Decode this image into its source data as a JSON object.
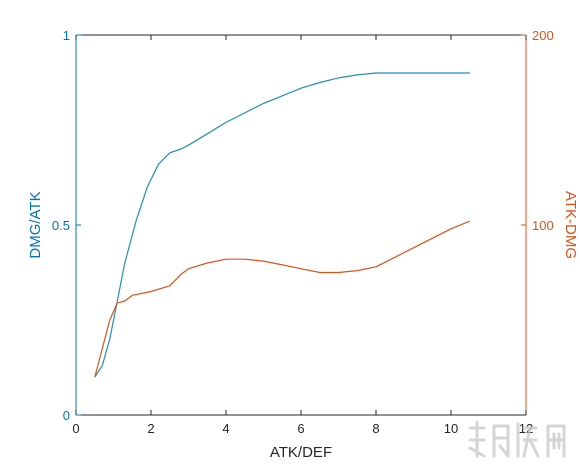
{
  "chart_data": {
    "type": "line",
    "xlabel": "ATK/DEF",
    "ylabel_left": "DMG/ATK",
    "ylabel_right": "ATK-DMG",
    "xlim": [
      0,
      12
    ],
    "ylim_left": [
      0,
      1
    ],
    "ylim_right": [
      0,
      200
    ],
    "x_ticks": [
      "0",
      "2",
      "4",
      "6",
      "8",
      "10",
      "12"
    ],
    "y_left_ticks": [
      "0",
      "0.5",
      "1"
    ],
    "y_right_ticks": [
      "100",
      "200"
    ],
    "grid": false,
    "colors": {
      "left_axis": "#0072BD",
      "right_axis": "#D95319",
      "left_series": "#1F90B8",
      "right_series": "#D95319",
      "axis_box": "#262626"
    },
    "series": [
      {
        "axis": "left",
        "x": [
          0.5,
          0.7,
          0.9,
          1.1,
          1.3,
          1.6,
          1.9,
          2.2,
          2.5,
          2.8,
          3.0,
          3.5,
          4.0,
          4.5,
          5.0,
          5.5,
          6.0,
          6.5,
          7.0,
          7.5,
          8.0,
          8.5,
          9.0,
          9.5,
          10.0,
          10.5
        ],
        "y": [
          0.1,
          0.13,
          0.2,
          0.3,
          0.4,
          0.51,
          0.6,
          0.66,
          0.69,
          0.7,
          0.71,
          0.74,
          0.77,
          0.795,
          0.82,
          0.84,
          0.86,
          0.875,
          0.887,
          0.895,
          0.9,
          0.9,
          0.9,
          0.9,
          0.9,
          0.9
        ]
      },
      {
        "axis": "right",
        "x": [
          0.5,
          0.7,
          0.9,
          1.1,
          1.3,
          1.5,
          2.0,
          2.5,
          2.8,
          3.0,
          3.5,
          4.0,
          4.5,
          5.0,
          5.5,
          6.0,
          6.5,
          7.0,
          7.5,
          8.0,
          8.5,
          9.0,
          9.5,
          10.0,
          10.5
        ],
        "y": [
          20,
          35,
          50,
          59,
          60,
          63,
          65,
          68,
          74,
          77,
          80,
          82,
          82,
          81,
          79,
          77,
          75,
          75,
          76,
          78,
          83,
          88,
          93,
          98,
          102
        ]
      }
    ]
  }
}
